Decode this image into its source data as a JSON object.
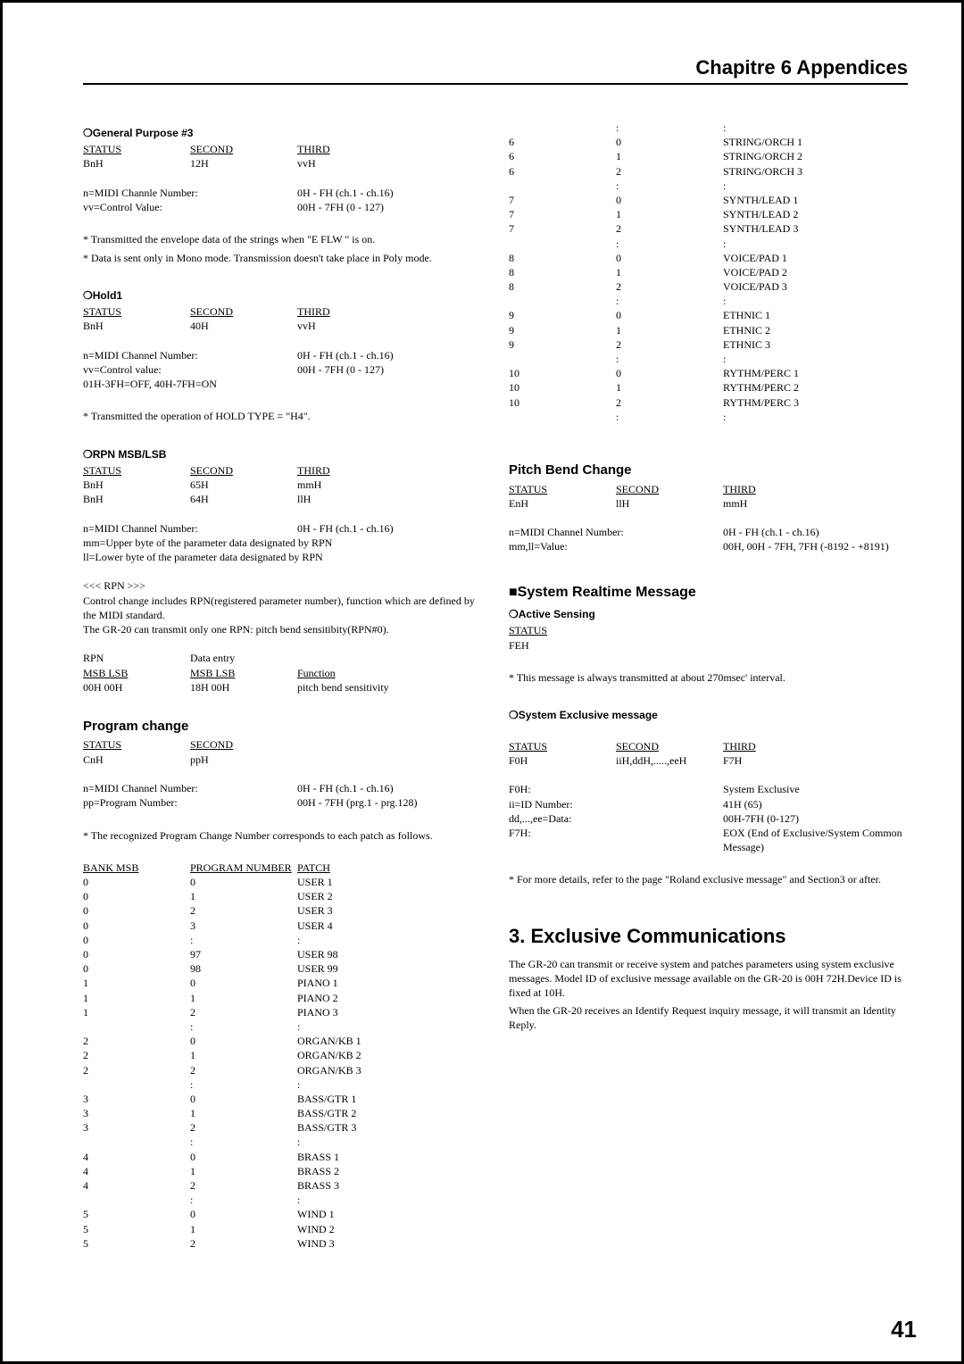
{
  "chapter_title": "Chapitre 6 Appendices",
  "page_number": "41",
  "left": {
    "gp3": {
      "title": "❍General Purpose #3",
      "hdr": [
        "STATUS",
        "SECOND",
        "THIRD"
      ],
      "row": [
        "BnH",
        "12H",
        "vvH"
      ],
      "p1_label": "n=MIDI Channle Number:",
      "p1_val": "0H - FH (ch.1 - ch.16)",
      "p2_label": "vv=Control Value:",
      "p2_val": "00H - 7FH (0 - 127)",
      "note1": "*   Transmitted the envelope data of the strings when \"E FLW \" is on.",
      "note2": "*   Data is sent only in Mono mode. Transmission doesn't take place in Poly mode."
    },
    "hold1": {
      "title": "❍Hold1",
      "hdr": [
        "STATUS",
        "SECOND",
        "THIRD"
      ],
      "row": [
        "BnH",
        "40H",
        "vvH"
      ],
      "p1_label": "n=MIDI Channel Number:",
      "p1_val": "0H - FH (ch.1 - ch.16)",
      "p2_label": "vv=Control value:",
      "p2_val": "00H - 7FH (0 - 127)",
      "p3": "01H-3FH=OFF, 40H-7FH=ON",
      "note1": "*   Transmitted the operation of HOLD TYPE = \"H4\"."
    },
    "rpn": {
      "title": "❍RPN MSB/LSB",
      "hdr": [
        "STATUS",
        "SECOND",
        "THIRD"
      ],
      "row1": [
        "BnH",
        "65H",
        "mmH"
      ],
      "row2": [
        "BnH",
        "64H",
        "llH"
      ],
      "p1_label": "n=MIDI Channel Number:",
      "p1_val": "0H - FH (ch.1 - ch.16)",
      "p2": "mm=Upper byte of the parameter data designated by RPN",
      "p3": "ll=Lower byte of the parameter data designated by RPN",
      "rpn_head": "<<< RPN >>>",
      "rpn_text1": "Control change includes RPN(registered parameter number), function which are defined by the MIDI standard.",
      "rpn_text2": "The GR-20 can transmit only one RPN: pitch bend sensitibity(RPN#0).",
      "tbl_hdr": [
        "RPN",
        "Data entry",
        ""
      ],
      "tbl_r1": [
        "MSB LSB",
        "MSB LSB",
        "Function"
      ],
      "tbl_r2": [
        "00H 00H",
        "18H 00H",
        "pitch bend sensitivity"
      ]
    },
    "pc": {
      "title": "Program change",
      "hdr": [
        "STATUS",
        "SECOND"
      ],
      "row": [
        "CnH",
        "ppH"
      ],
      "p1_label": "n=MIDI Channel Number:",
      "p1_val": "0H - FH (ch.1 - ch.16)",
      "p2_label": "pp=Program Number:",
      "p2_val": "00H - 7FH (prg.1 - prg.128)",
      "note": "*   The recognized Program Change Number corresponds to each patch as follows.",
      "tbl_hdr": [
        "BANK MSB",
        "PROGRAM NUMBER",
        "PATCH"
      ],
      "rows": [
        [
          " 0",
          "0",
          "USER 1"
        ],
        [
          " 0",
          "1",
          "USER 2"
        ],
        [
          " 0",
          "2",
          "USER 3"
        ],
        [
          " 0",
          "3",
          "USER 4"
        ],
        [
          " 0",
          ":",
          ":"
        ],
        [
          " 0",
          "97",
          "USER 98"
        ],
        [
          " 0",
          "98",
          "USER 99"
        ],
        [
          "",
          "",
          ""
        ],
        [
          " 1",
          "0",
          "PIANO 1"
        ],
        [
          " 1",
          "1",
          "PIANO 2"
        ],
        [
          " 1",
          "2",
          "PIANO 3"
        ],
        [
          "",
          ":",
          ":"
        ],
        [
          " 2",
          "0",
          "ORGAN/KB 1"
        ],
        [
          " 2",
          "1",
          "ORGAN/KB 2"
        ],
        [
          " 2",
          "2",
          "ORGAN/KB 3"
        ],
        [
          "",
          ":",
          ":"
        ],
        [
          " 3",
          "0",
          "BASS/GTR 1"
        ],
        [
          " 3",
          "1",
          "BASS/GTR 2"
        ],
        [
          " 3",
          "2",
          "BASS/GTR 3"
        ],
        [
          "",
          ":",
          ":"
        ],
        [
          " 4",
          "0",
          "BRASS 1"
        ],
        [
          " 4",
          "1",
          "BRASS 2"
        ],
        [
          " 4",
          "2",
          "BRASS 3"
        ],
        [
          "",
          ":",
          ":"
        ],
        [
          " 5",
          "0",
          "WIND 1"
        ],
        [
          " 5",
          "1",
          "WIND 2"
        ],
        [
          " 5",
          "2",
          "WIND 3"
        ]
      ]
    }
  },
  "right": {
    "cont_rows": [
      [
        "",
        ":",
        ":"
      ],
      [
        " 6",
        "0",
        "STRING/ORCH 1"
      ],
      [
        " 6",
        "1",
        "STRING/ORCH 2"
      ],
      [
        " 6",
        "2",
        "STRING/ORCH 3"
      ],
      [
        "",
        ":",
        ":"
      ],
      [
        " 7",
        "0",
        "SYNTH/LEAD 1"
      ],
      [
        " 7",
        "1",
        "SYNTH/LEAD 2"
      ],
      [
        " 7",
        "2",
        "SYNTH/LEAD 3"
      ],
      [
        "",
        ":",
        ":"
      ],
      [
        " 8",
        "0",
        "VOICE/PAD 1"
      ],
      [
        " 8",
        "1",
        "VOICE/PAD 2"
      ],
      [
        " 8",
        "2",
        "VOICE/PAD 3"
      ],
      [
        "",
        ":",
        ":"
      ],
      [
        " 9",
        "0",
        "ETHNIC 1"
      ],
      [
        " 9",
        "1",
        "ETHNIC 2"
      ],
      [
        " 9",
        "2",
        "ETHNIC 3"
      ],
      [
        "",
        ":",
        ":"
      ],
      [
        " 10",
        "0",
        "RYTHM/PERC 1"
      ],
      [
        " 10",
        "1",
        "RYTHM/PERC 2"
      ],
      [
        " 10",
        "2",
        "RYTHM/PERC 3"
      ],
      [
        "",
        ":",
        ":"
      ]
    ],
    "pbc": {
      "title": "Pitch Bend Change",
      "hdr": [
        "STATUS",
        "SECOND",
        "THIRD"
      ],
      "row": [
        "EnH",
        "llH",
        "mmH"
      ],
      "p1_label": "n=MIDI Channel Number:",
      "p1_val": "0H - FH (ch.1 - ch.16)",
      "p2_label": "mm,ll=Value:",
      "p2_val": "00H, 00H - 7FH, 7FH (-8192 - +8191)"
    },
    "srt": {
      "title": "■System Realtime Message",
      "as_title": "❍Active Sensing",
      "as_hdr": "STATUS",
      "as_row": "FEH",
      "as_note": "*   This message is always transmitted at about 270msec' interval.",
      "se_title": "❍System Exclusive message",
      "se_hdr": [
        "STATUS",
        "SECOND",
        "THIRD"
      ],
      "se_row": [
        "F0H",
        "iiH,ddH,.....,eeH",
        "F7H"
      ],
      "se_defs": [
        [
          "F0H:",
          "System Exclusive"
        ],
        [
          "ii=ID Number:",
          "41H (65)"
        ],
        [
          "dd,...,ee=Data:",
          "00H-7FH (0-127)"
        ],
        [
          "F7H:",
          "EOX (End of Exclusive/System Common Message)"
        ]
      ],
      "se_note": "*   For more details, refer to the page \"Roland exclusive message\" and Section3 or after."
    },
    "exc": {
      "title": "3. Exclusive Communications",
      "p1": "The GR-20 can transmit or receive system and patches parameters using system exclusive messages. Model ID of exclusive message available on the GR-20 is 00H 72H.Device ID is fixed at 10H.",
      "p2": "When the GR-20 receives an Identify Request inquiry message, it will transmit an Identity Reply."
    }
  }
}
